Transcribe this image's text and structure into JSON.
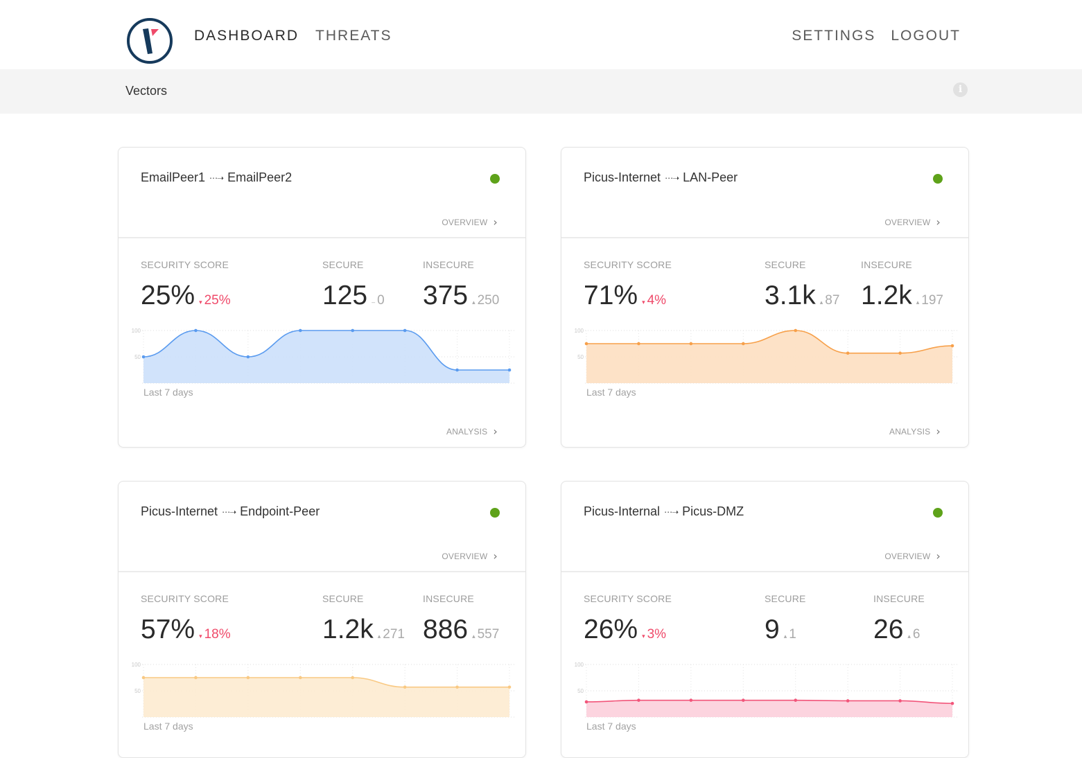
{
  "nav": {
    "logo": "logo-icon",
    "left": [
      "DASHBOARD",
      "THREATS"
    ],
    "right": [
      "SETTINGS",
      "LOGOUT"
    ]
  },
  "subbar": {
    "title": "Vectors",
    "info_icon": "info-icon"
  },
  "colors": {
    "ok": "#5ea21a",
    "negative": "#ef4a6a",
    "blue_line": "#5a9bef",
    "blue_fill": "#cfe2fb",
    "orange_line": "#f7a04a",
    "orange_fill": "#fde0c4",
    "amber_line": "#f9c983",
    "amber_fill": "#fdecd3",
    "pink_line": "#f2557a",
    "pink_fill": "#fcd2dd"
  },
  "labels": {
    "security_score": "SECURITY SCORE",
    "secure": "SECURE",
    "insecure": "INSECURE",
    "overview": "OVERVIEW",
    "analysis": "ANALYSIS",
    "last7": "Last 7 days",
    "arrow": "⋯➝"
  },
  "cards": [
    {
      "from": "EmailPeer1",
      "to": "EmailPeer2",
      "status": "ok",
      "score": "25%",
      "score_delta": "25%",
      "score_dir": "down",
      "secure": "125",
      "secure_delta": "0",
      "secure_dir": "flat",
      "insecure": "375",
      "insecure_delta": "250",
      "insecure_dir": "up",
      "theme": "blue"
    },
    {
      "from": "Picus-Internet",
      "to": "LAN-Peer",
      "status": "ok",
      "score": "71%",
      "score_delta": "4%",
      "score_dir": "down",
      "secure": "3.1k",
      "secure_delta": "87",
      "secure_dir": "up",
      "insecure": "1.2k",
      "insecure_delta": "197",
      "insecure_dir": "up",
      "theme": "orange"
    },
    {
      "from": "Picus-Internet",
      "to": "Endpoint-Peer",
      "status": "ok",
      "score": "57%",
      "score_delta": "18%",
      "score_dir": "down",
      "secure": "1.2k",
      "secure_delta": "271",
      "secure_dir": "up",
      "insecure": "886",
      "insecure_delta": "557",
      "insecure_dir": "up",
      "theme": "amber"
    },
    {
      "from": "Picus-Internal",
      "to": "Picus-DMZ",
      "status": "ok",
      "score": "26%",
      "score_delta": "3%",
      "score_dir": "down",
      "secure": "9",
      "secure_delta": "1",
      "secure_dir": "up",
      "insecure": "26",
      "insecure_delta": "6",
      "insecure_dir": "up",
      "theme": "pink"
    }
  ],
  "chart_data": [
    {
      "type": "area",
      "title": "EmailPeer1 → EmailPeer2",
      "xlabel": "Last 7 days",
      "ylabel": "",
      "ylim": [
        0,
        100
      ],
      "yticks": [
        "100",
        "50"
      ],
      "x": [
        1,
        2,
        3,
        4,
        5,
        6,
        7,
        8
      ],
      "values": [
        50,
        100,
        50,
        100,
        100,
        100,
        25,
        25
      ]
    },
    {
      "type": "area",
      "title": "Picus-Internet → LAN-Peer",
      "xlabel": "Last 7 days",
      "ylabel": "",
      "ylim": [
        0,
        100
      ],
      "yticks": [
        "100",
        "50"
      ],
      "x": [
        1,
        2,
        3,
        4,
        5,
        6,
        7,
        8
      ],
      "values": [
        75,
        75,
        75,
        75,
        100,
        57,
        57,
        71
      ]
    },
    {
      "type": "area",
      "title": "Picus-Internet → Endpoint-Peer",
      "xlabel": "Last 7 days",
      "ylabel": "",
      "ylim": [
        0,
        100
      ],
      "yticks": [
        "100",
        "50"
      ],
      "x": [
        1,
        2,
        3,
        4,
        5,
        6,
        7,
        8
      ],
      "values": [
        75,
        75,
        75,
        75,
        75,
        57,
        57,
        57
      ]
    },
    {
      "type": "area",
      "title": "Picus-Internal → Picus-DMZ",
      "xlabel": "Last 7 days",
      "ylabel": "",
      "ylim": [
        0,
        100
      ],
      "yticks": [
        "100",
        "50"
      ],
      "x": [
        1,
        2,
        3,
        4,
        5,
        6,
        7,
        8
      ],
      "values": [
        29,
        32,
        32,
        32,
        32,
        31,
        31,
        26
      ]
    }
  ]
}
